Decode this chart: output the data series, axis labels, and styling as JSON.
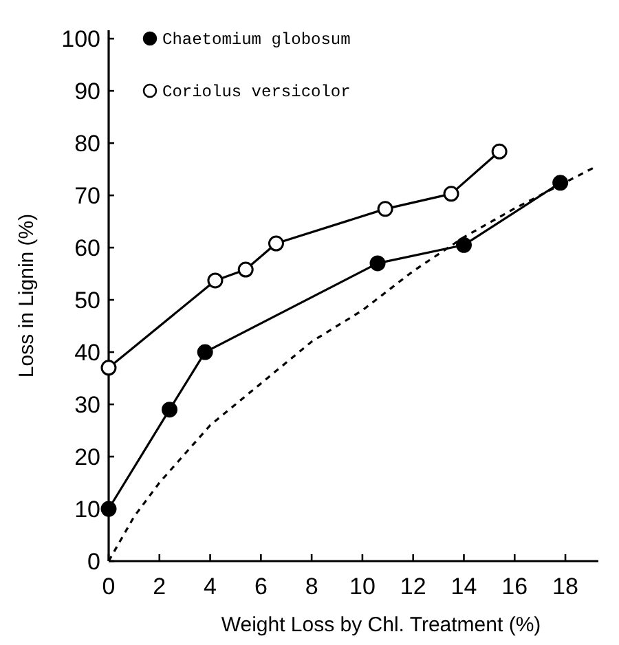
{
  "chart_data": {
    "type": "line",
    "xlabel": "Weight Loss by Chl. Treatment (%)",
    "ylabel": "Loss in Lignin (%)",
    "xlim": [
      0,
      19.3
    ],
    "xticks": [
      0,
      2,
      4,
      6,
      8,
      10,
      12,
      14,
      16,
      18
    ],
    "ylim": [
      0,
      101.6
    ],
    "yticks": [
      0,
      10,
      20,
      30,
      40,
      50,
      60,
      70,
      80,
      90,
      100
    ],
    "grid": false,
    "legend": "top left",
    "marker": "circle",
    "line_style": "solid",
    "series": [
      {
        "name": "Chaetomium globosum",
        "color": "#000000",
        "x": [
          0,
          2.4,
          3.8,
          10.6,
          14,
          17.8
        ],
        "values": [
          10,
          29,
          40,
          57,
          60.5,
          72.4
        ]
      },
      {
        "name": "Coriolus versicolor",
        "color": "#000000",
        "x": [
          0,
          4.2,
          5.4,
          6.6,
          10.9,
          13.5,
          15.4
        ],
        "values": [
          37,
          53.7,
          55.8,
          60.8,
          67.4,
          70.3,
          78.4
        ]
      },
      {
        "color": "#000000",
        "marker": "none",
        "line_style": "dashed",
        "x": [
          0,
          1,
          2,
          4,
          6,
          8,
          10,
          12,
          14,
          16,
          18,
          19.2
        ],
        "values": [
          0,
          8.5,
          15,
          26,
          34,
          42,
          48,
          55.5,
          62,
          67.5,
          72.5,
          75.5
        ]
      }
    ]
  }
}
